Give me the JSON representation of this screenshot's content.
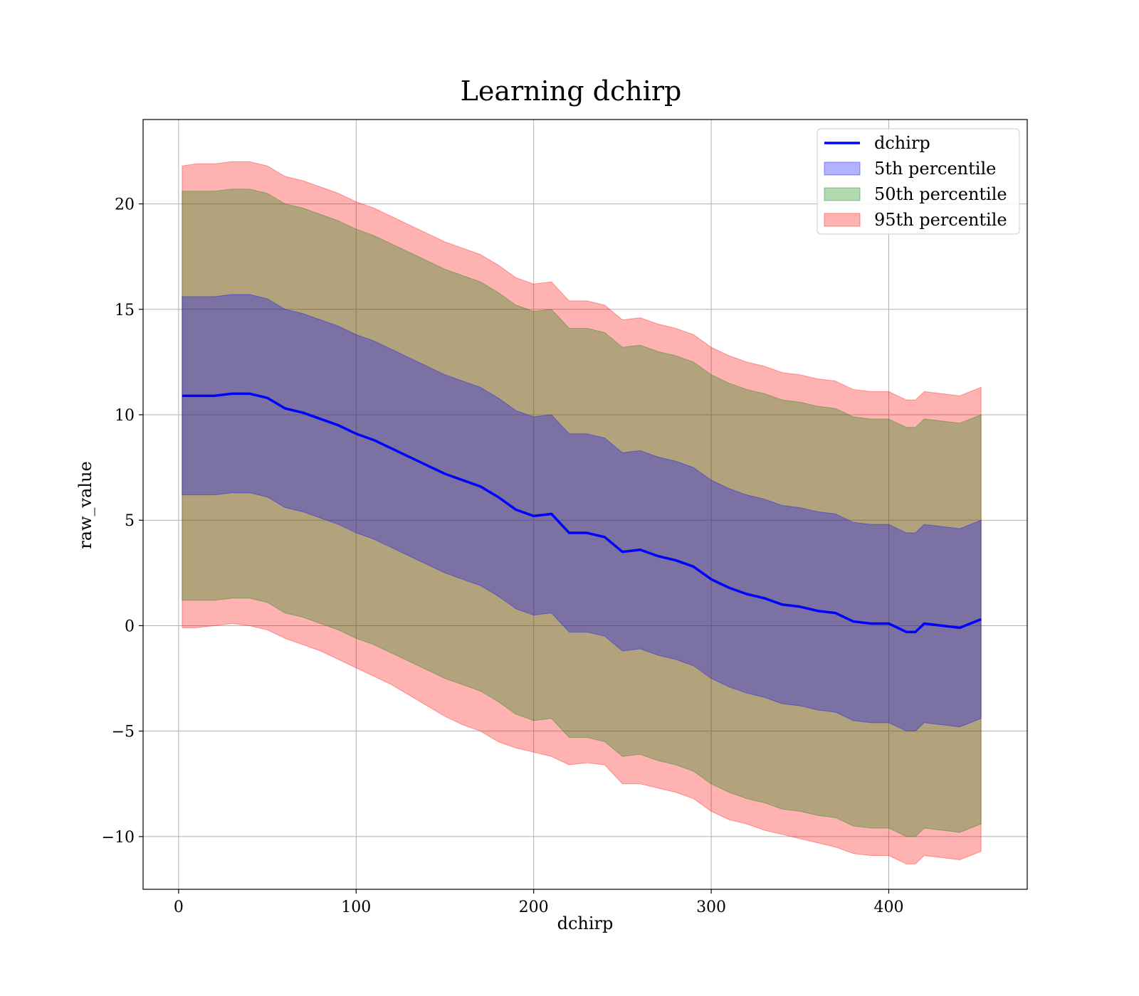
{
  "chart_data": {
    "type": "area",
    "title": "Learning dchirp",
    "xlabel": "dchirp",
    "ylabel": "raw_value",
    "xlim": [
      -20,
      478
    ],
    "ylim": [
      -12.5,
      24
    ],
    "grid": true,
    "legend_position": "top-right",
    "x_ticks": [
      0,
      100,
      200,
      300,
      400
    ],
    "x_tick_labels": [
      "0",
      "100",
      "200",
      "300",
      "400"
    ],
    "y_ticks": [
      -10,
      -5,
      0,
      5,
      10,
      15,
      20
    ],
    "y_tick_labels": [
      "−10",
      "−5",
      "0",
      "5",
      "10",
      "15",
      "20"
    ],
    "x": [
      2,
      10,
      20,
      30,
      40,
      50,
      60,
      70,
      80,
      90,
      100,
      110,
      120,
      130,
      140,
      150,
      160,
      170,
      180,
      190,
      200,
      210,
      220,
      230,
      240,
      250,
      260,
      270,
      280,
      290,
      300,
      310,
      320,
      330,
      340,
      350,
      360,
      370,
      380,
      390,
      400,
      410,
      415,
      420,
      430,
      440,
      452
    ],
    "line": {
      "name": "dchirp",
      "color": "#0000ff",
      "values": [
        10.9,
        10.9,
        10.9,
        11.0,
        11.0,
        10.8,
        10.3,
        10.1,
        9.8,
        9.5,
        9.1,
        8.8,
        8.4,
        8.0,
        7.6,
        7.2,
        6.9,
        6.6,
        6.1,
        5.5,
        5.2,
        5.3,
        4.4,
        4.4,
        4.2,
        3.5,
        3.6,
        3.3,
        3.1,
        2.8,
        2.2,
        1.8,
        1.5,
        1.3,
        1.0,
        0.9,
        0.7,
        0.6,
        0.2,
        0.1,
        0.1,
        -0.3,
        -0.3,
        0.1,
        0.0,
        -0.1,
        0.3
      ]
    },
    "bands": [
      {
        "name": "95th percentile",
        "color": "#ff0000",
        "opacity": 0.3,
        "lower": [
          -0.1,
          -0.1,
          0.0,
          0.1,
          0.0,
          -0.2,
          -0.6,
          -0.9,
          -1.2,
          -1.6,
          -2.0,
          -2.4,
          -2.8,
          -3.3,
          -3.8,
          -4.3,
          -4.7,
          -5.0,
          -5.5,
          -5.8,
          -6.0,
          -6.2,
          -6.6,
          -6.5,
          -6.6,
          -7.5,
          -7.5,
          -7.7,
          -7.9,
          -8.2,
          -8.8,
          -9.2,
          -9.4,
          -9.7,
          -9.9,
          -10.1,
          -10.3,
          -10.5,
          -10.8,
          -10.9,
          -10.9,
          -11.3,
          -11.3,
          -10.9,
          -11.0,
          -11.1,
          -10.7
        ],
        "upper": [
          21.8,
          21.9,
          21.9,
          22.0,
          22.0,
          21.8,
          21.3,
          21.1,
          20.8,
          20.5,
          20.1,
          19.8,
          19.4,
          19.0,
          18.6,
          18.2,
          17.9,
          17.6,
          17.1,
          16.5,
          16.2,
          16.3,
          15.4,
          15.4,
          15.2,
          14.5,
          14.6,
          14.3,
          14.1,
          13.8,
          13.2,
          12.8,
          12.5,
          12.3,
          12.0,
          11.9,
          11.7,
          11.6,
          11.2,
          11.1,
          11.1,
          10.7,
          10.7,
          11.1,
          11.0,
          10.9,
          11.3
        ]
      },
      {
        "name": "50th percentile",
        "color": "#008000",
        "opacity": 0.3,
        "lower": [
          1.2,
          1.2,
          1.2,
          1.3,
          1.3,
          1.1,
          0.6,
          0.4,
          0.1,
          -0.2,
          -0.6,
          -0.9,
          -1.3,
          -1.7,
          -2.1,
          -2.5,
          -2.8,
          -3.1,
          -3.6,
          -4.2,
          -4.5,
          -4.4,
          -5.3,
          -5.3,
          -5.5,
          -6.2,
          -6.1,
          -6.4,
          -6.6,
          -6.9,
          -7.5,
          -7.9,
          -8.2,
          -8.4,
          -8.7,
          -8.8,
          -9.0,
          -9.1,
          -9.5,
          -9.6,
          -9.6,
          -10.0,
          -10.0,
          -9.6,
          -9.7,
          -9.8,
          -9.4
        ],
        "upper": [
          20.6,
          20.6,
          20.6,
          20.7,
          20.7,
          20.5,
          20.0,
          19.8,
          19.5,
          19.2,
          18.8,
          18.5,
          18.1,
          17.7,
          17.3,
          16.9,
          16.6,
          16.3,
          15.8,
          15.2,
          14.9,
          15.0,
          14.1,
          14.1,
          13.9,
          13.2,
          13.3,
          13.0,
          12.8,
          12.5,
          11.9,
          11.5,
          11.2,
          11.0,
          10.7,
          10.6,
          10.4,
          10.3,
          9.9,
          9.8,
          9.8,
          9.4,
          9.4,
          9.8,
          9.7,
          9.6,
          10.0
        ]
      },
      {
        "name": "5th percentile",
        "color": "#0000ff",
        "opacity": 0.3,
        "lower": [
          6.2,
          6.2,
          6.2,
          6.3,
          6.3,
          6.1,
          5.6,
          5.4,
          5.1,
          4.8,
          4.4,
          4.1,
          3.7,
          3.3,
          2.9,
          2.5,
          2.2,
          1.9,
          1.4,
          0.8,
          0.5,
          0.6,
          -0.3,
          -0.3,
          -0.5,
          -1.2,
          -1.1,
          -1.4,
          -1.6,
          -1.9,
          -2.5,
          -2.9,
          -3.2,
          -3.4,
          -3.7,
          -3.8,
          -4.0,
          -4.1,
          -4.5,
          -4.6,
          -4.6,
          -5.0,
          -5.0,
          -4.6,
          -4.7,
          -4.8,
          -4.4
        ],
        "upper": [
          15.6,
          15.6,
          15.6,
          15.7,
          15.7,
          15.5,
          15.0,
          14.8,
          14.5,
          14.2,
          13.8,
          13.5,
          13.1,
          12.7,
          12.3,
          11.9,
          11.6,
          11.3,
          10.8,
          10.2,
          9.9,
          10.0,
          9.1,
          9.1,
          8.9,
          8.2,
          8.3,
          8.0,
          7.8,
          7.5,
          6.9,
          6.5,
          6.2,
          6.0,
          5.7,
          5.6,
          5.4,
          5.3,
          4.9,
          4.8,
          4.8,
          4.4,
          4.4,
          4.8,
          4.7,
          4.6,
          5.0
        ]
      }
    ],
    "legend": [
      {
        "label": "dchirp",
        "kind": "line",
        "color": "#0000ff"
      },
      {
        "label": "5th percentile",
        "kind": "patch",
        "color": "#0000ff"
      },
      {
        "label": "50th percentile",
        "kind": "patch",
        "color": "#008000"
      },
      {
        "label": "95th percentile",
        "kind": "patch",
        "color": "#ff0000"
      }
    ]
  }
}
